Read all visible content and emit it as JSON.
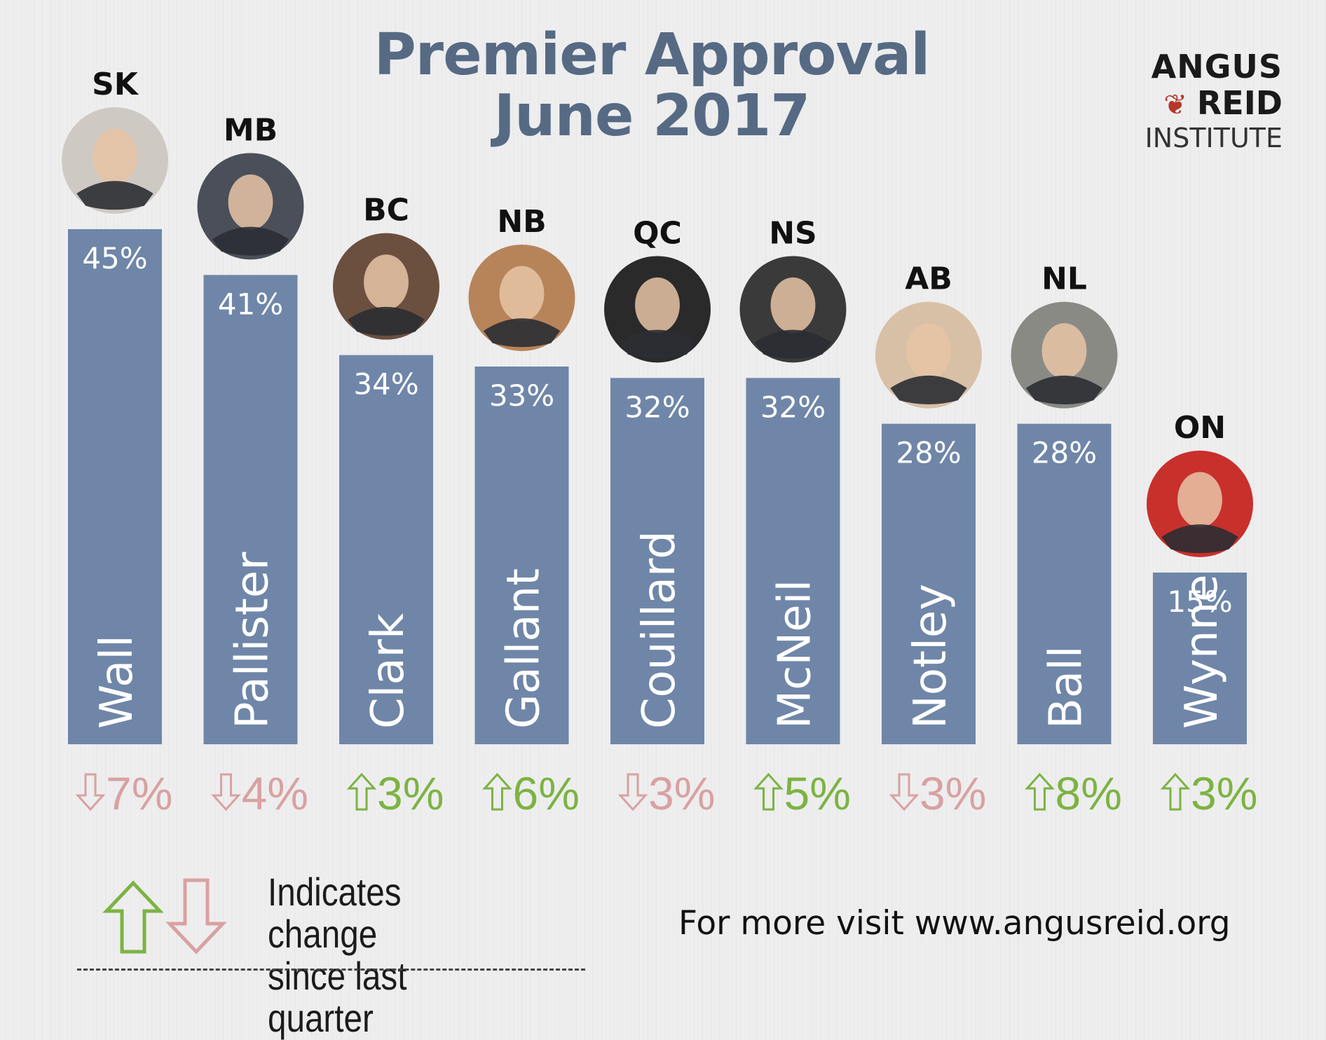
{
  "header": {
    "title_line1": "Premier Approval",
    "title_line2": "June 2017"
  },
  "logo": {
    "line1": "ANGUS",
    "line2": "REID",
    "line3": "INSTITUTE",
    "leaf_icon": "maple-leaf-icon"
  },
  "legend": {
    "line1": "Indicates change",
    "line2": "since last quarter",
    "up_icon": "arrow-up-icon",
    "down_icon": "arrow-down-icon"
  },
  "footer": {
    "visit": "For more visit www.angusreid.org"
  },
  "colors": {
    "bar": "#6f86a8",
    "title": "#566a84",
    "up": "#7cb342",
    "down": "#d9a1a1",
    "background": "#eeeeef"
  },
  "chart_data": {
    "type": "bar",
    "title": "Premier Approval June 2017",
    "ylim": [
      0,
      45
    ],
    "grid": false,
    "categories": [
      "SK",
      "MB",
      "BC",
      "NB",
      "QC",
      "NS",
      "AB",
      "NL",
      "ON"
    ],
    "names": [
      "Wall",
      "Pallister",
      "Clark",
      "Gallant",
      "Couillard",
      "McNeil",
      "Notley",
      "Ball",
      "Wynne"
    ],
    "values": [
      45,
      41,
      34,
      33,
      32,
      32,
      28,
      28,
      15
    ],
    "value_labels": [
      "45%",
      "41%",
      "34%",
      "33%",
      "32%",
      "32%",
      "28%",
      "28%",
      "15%"
    ],
    "change": [
      -7,
      -4,
      3,
      6,
      -3,
      5,
      -3,
      8,
      3
    ],
    "change_labels": [
      "7%",
      "4%",
      "3%",
      "6%",
      "3%",
      "5%",
      "3%",
      "8%",
      "3%"
    ],
    "change_direction": [
      "down",
      "down",
      "up",
      "up",
      "down",
      "up",
      "down",
      "up",
      "up"
    ]
  }
}
